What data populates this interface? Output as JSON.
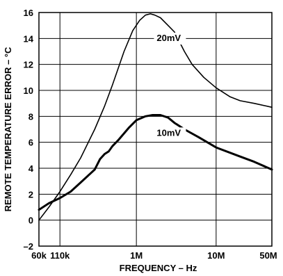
{
  "chart_data": {
    "type": "line",
    "title": "",
    "xlabel": "FREQUENCY – Hz",
    "ylabel": "REMOTE  TEMPERATURE ERROR – °C",
    "x_scale": "log",
    "xlim": [
      60000,
      50000000
    ],
    "ylim": [
      -2,
      16
    ],
    "x_ticks": [
      {
        "value": 60000,
        "label": "60k"
      },
      {
        "value": 110000,
        "label": "110k"
      },
      {
        "value": 1000000,
        "label": "1M"
      },
      {
        "value": 10000000,
        "label": "10M"
      },
      {
        "value": 50000000,
        "label": "50M"
      }
    ],
    "y_ticks": [
      {
        "value": -2,
        "label": "–2"
      },
      {
        "value": 0,
        "label": "0"
      },
      {
        "value": 2,
        "label": "2"
      },
      {
        "value": 4,
        "label": "4"
      },
      {
        "value": 6,
        "label": "6"
      },
      {
        "value": 8,
        "label": "8"
      },
      {
        "value": 10,
        "label": "10"
      },
      {
        "value": 12,
        "label": "12"
      },
      {
        "value": 14,
        "label": "14"
      },
      {
        "value": 16,
        "label": "16"
      }
    ],
    "grid": true,
    "legend": "none",
    "series": [
      {
        "name": "20mV",
        "stroke": "thin",
        "x": [
          60000,
          80000,
          110000,
          150000,
          200000,
          300000,
          400000,
          500000,
          700000,
          900000,
          1100000,
          1300000,
          1500000,
          1700000,
          2000000,
          2500000,
          3000000,
          4000000,
          5000000,
          7000000,
          10000000,
          15000000,
          20000000,
          30000000,
          50000000
        ],
        "values": [
          0.0,
          1.0,
          2.2,
          3.5,
          4.8,
          7.0,
          8.8,
          10.4,
          13.0,
          14.6,
          15.4,
          15.8,
          15.9,
          15.8,
          15.6,
          15.0,
          14.5,
          13.0,
          12.0,
          11.0,
          10.2,
          9.5,
          9.2,
          9.0,
          8.7
        ]
      },
      {
        "name": "10mV",
        "stroke": "thick",
        "x": [
          60000,
          80000,
          110000,
          150000,
          200000,
          300000,
          350000,
          400000,
          450000,
          500000,
          600000,
          800000,
          1000000,
          1300000,
          1600000,
          2000000,
          2500000,
          3000000,
          4000000,
          6000000,
          10000000,
          20000000,
          30000000,
          50000000
        ],
        "values": [
          0.8,
          1.3,
          1.7,
          2.2,
          2.9,
          3.9,
          4.7,
          5.1,
          5.3,
          5.7,
          6.2,
          7.1,
          7.7,
          8.0,
          8.1,
          8.1,
          7.9,
          7.5,
          7.0,
          6.4,
          5.6,
          4.9,
          4.5,
          3.9
        ]
      }
    ],
    "annotations": [
      {
        "text": "20mV",
        "series": "20mV"
      },
      {
        "text": "10mV",
        "series": "10mV"
      }
    ]
  }
}
